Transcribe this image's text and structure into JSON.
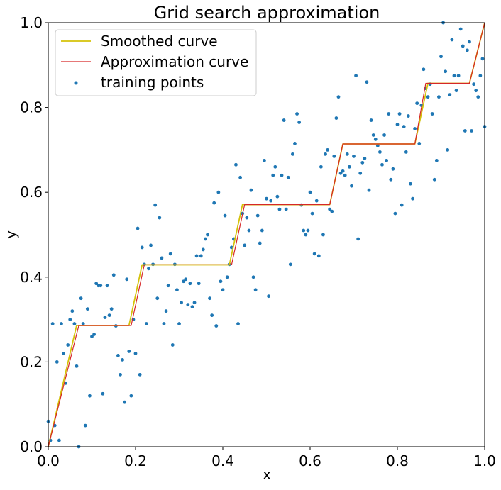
{
  "chart_data": {
    "type": "line",
    "title": "Grid search approximation",
    "xlabel": "x",
    "ylabel": "y",
    "xlim": [
      0.0,
      1.0
    ],
    "ylim": [
      0.0,
      1.0
    ],
    "xticks": [
      "0.0",
      "0.2",
      "0.4",
      "0.6",
      "0.8",
      "1.0"
    ],
    "yticks": [
      "0.0",
      "0.2",
      "0.4",
      "0.6",
      "0.8",
      "1.0"
    ],
    "grid": false,
    "legend_position": "top-left",
    "series": [
      {
        "name": "Smoothed curve",
        "kind": "line",
        "color": "#d4c20a",
        "x": [
          0.0,
          0.065,
          0.185,
          0.215,
          0.325,
          0.355,
          0.415,
          0.445,
          0.645,
          0.675,
          0.84,
          0.87,
          0.965,
          1.0
        ],
        "y": [
          0.0,
          0.286,
          0.286,
          0.429,
          0.429,
          0.429,
          0.429,
          0.571,
          0.571,
          0.714,
          0.714,
          0.857,
          0.857,
          1.0
        ]
      },
      {
        "name": "Approximation curve",
        "kind": "line",
        "color": "#d62728",
        "x": [
          0.0,
          0.07,
          0.19,
          0.22,
          0.42,
          0.45,
          0.645,
          0.675,
          0.84,
          0.865,
          0.965,
          1.0
        ],
        "y": [
          0.0,
          0.286,
          0.286,
          0.429,
          0.429,
          0.571,
          0.571,
          0.714,
          0.714,
          0.857,
          0.857,
          1.0
        ]
      },
      {
        "name": "training points",
        "kind": "scatter",
        "color": "#1f77b4",
        "points": [
          [
            0.0,
            0.06
          ],
          [
            0.005,
            0.015
          ],
          [
            0.01,
            0.29
          ],
          [
            0.015,
            0.05
          ],
          [
            0.02,
            0.2
          ],
          [
            0.025,
            0.015
          ],
          [
            0.03,
            0.29
          ],
          [
            0.035,
            0.22
          ],
          [
            0.04,
            0.15
          ],
          [
            0.045,
            0.24
          ],
          [
            0.05,
            0.3
          ],
          [
            0.055,
            0.32
          ],
          [
            0.06,
            0.29
          ],
          [
            0.065,
            0.19
          ],
          [
            0.07,
            0.0
          ],
          [
            0.075,
            0.35
          ],
          [
            0.08,
            0.29
          ],
          [
            0.085,
            0.05
          ],
          [
            0.09,
            0.325
          ],
          [
            0.095,
            0.12
          ],
          [
            0.1,
            0.26
          ],
          [
            0.105,
            0.265
          ],
          [
            0.11,
            0.385
          ],
          [
            0.115,
            0.38
          ],
          [
            0.12,
            0.38
          ],
          [
            0.125,
            0.125
          ],
          [
            0.13,
            0.305
          ],
          [
            0.135,
            0.38
          ],
          [
            0.14,
            0.31
          ],
          [
            0.145,
            0.325
          ],
          [
            0.15,
            0.405
          ],
          [
            0.155,
            0.285
          ],
          [
            0.16,
            0.215
          ],
          [
            0.165,
            0.17
          ],
          [
            0.17,
            0.205
          ],
          [
            0.175,
            0.105
          ],
          [
            0.18,
            0.395
          ],
          [
            0.185,
            0.225
          ],
          [
            0.19,
            0.12
          ],
          [
            0.195,
            0.3
          ],
          [
            0.2,
            0.22
          ],
          [
            0.205,
            0.515
          ],
          [
            0.21,
            0.17
          ],
          [
            0.215,
            0.47
          ],
          [
            0.22,
            0.43
          ],
          [
            0.225,
            0.29
          ],
          [
            0.23,
            0.42
          ],
          [
            0.235,
            0.475
          ],
          [
            0.24,
            0.43
          ],
          [
            0.245,
            0.57
          ],
          [
            0.25,
            0.35
          ],
          [
            0.255,
            0.54
          ],
          [
            0.26,
            0.445
          ],
          [
            0.265,
            0.29
          ],
          [
            0.27,
            0.32
          ],
          [
            0.275,
            0.38
          ],
          [
            0.28,
            0.455
          ],
          [
            0.285,
            0.24
          ],
          [
            0.29,
            0.43
          ],
          [
            0.295,
            0.37
          ],
          [
            0.3,
            0.29
          ],
          [
            0.305,
            0.34
          ],
          [
            0.31,
            0.39
          ],
          [
            0.315,
            0.395
          ],
          [
            0.32,
            0.335
          ],
          [
            0.325,
            0.385
          ],
          [
            0.33,
            0.33
          ],
          [
            0.335,
            0.34
          ],
          [
            0.34,
            0.45
          ],
          [
            0.345,
            0.385
          ],
          [
            0.35,
            0.45
          ],
          [
            0.355,
            0.465
          ],
          [
            0.36,
            0.49
          ],
          [
            0.365,
            0.5
          ],
          [
            0.37,
            0.35
          ],
          [
            0.375,
            0.31
          ],
          [
            0.38,
            0.575
          ],
          [
            0.385,
            0.285
          ],
          [
            0.39,
            0.6
          ],
          [
            0.395,
            0.39
          ],
          [
            0.4,
            0.37
          ],
          [
            0.405,
            0.545
          ],
          [
            0.41,
            0.4
          ],
          [
            0.415,
            0.43
          ],
          [
            0.42,
            0.47
          ],
          [
            0.425,
            0.49
          ],
          [
            0.43,
            0.665
          ],
          [
            0.435,
            0.29
          ],
          [
            0.44,
            0.635
          ],
          [
            0.445,
            0.55
          ],
          [
            0.45,
            0.475
          ],
          [
            0.455,
            0.54
          ],
          [
            0.46,
            0.51
          ],
          [
            0.465,
            0.605
          ],
          [
            0.47,
            0.4
          ],
          [
            0.475,
            0.37
          ],
          [
            0.48,
            0.545
          ],
          [
            0.485,
            0.48
          ],
          [
            0.49,
            0.51
          ],
          [
            0.495,
            0.675
          ],
          [
            0.5,
            0.585
          ],
          [
            0.505,
            0.355
          ],
          [
            0.51,
            0.58
          ],
          [
            0.515,
            0.64
          ],
          [
            0.52,
            0.66
          ],
          [
            0.525,
            0.59
          ],
          [
            0.53,
            0.56
          ],
          [
            0.535,
            0.64
          ],
          [
            0.54,
            0.77
          ],
          [
            0.545,
            0.56
          ],
          [
            0.55,
            0.635
          ],
          [
            0.555,
            0.43
          ],
          [
            0.56,
            0.69
          ],
          [
            0.565,
            0.715
          ],
          [
            0.57,
            0.785
          ],
          [
            0.575,
            0.765
          ],
          [
            0.58,
            0.57
          ],
          [
            0.585,
            0.51
          ],
          [
            0.59,
            0.5
          ],
          [
            0.595,
            0.51
          ],
          [
            0.6,
            0.6
          ],
          [
            0.605,
            0.55
          ],
          [
            0.61,
            0.455
          ],
          [
            0.615,
            0.58
          ],
          [
            0.62,
            0.45
          ],
          [
            0.625,
            0.66
          ],
          [
            0.63,
            0.5
          ],
          [
            0.635,
            0.69
          ],
          [
            0.64,
            0.7
          ],
          [
            0.645,
            0.56
          ],
          [
            0.65,
            0.555
          ],
          [
            0.655,
            0.685
          ],
          [
            0.66,
            0.775
          ],
          [
            0.665,
            0.825
          ],
          [
            0.67,
            0.645
          ],
          [
            0.675,
            0.65
          ],
          [
            0.68,
            0.64
          ],
          [
            0.685,
            0.69
          ],
          [
            0.69,
            0.66
          ],
          [
            0.695,
            0.615
          ],
          [
            0.7,
            0.685
          ],
          [
            0.705,
            0.875
          ],
          [
            0.71,
            0.49
          ],
          [
            0.715,
            0.645
          ],
          [
            0.72,
            0.67
          ],
          [
            0.725,
            0.68
          ],
          [
            0.73,
            0.86
          ],
          [
            0.735,
            0.605
          ],
          [
            0.74,
            0.77
          ],
          [
            0.745,
            0.735
          ],
          [
            0.75,
            0.725
          ],
          [
            0.755,
            0.71
          ],
          [
            0.76,
            0.695
          ],
          [
            0.765,
            0.665
          ],
          [
            0.77,
            0.735
          ],
          [
            0.775,
            0.675
          ],
          [
            0.78,
            0.785
          ],
          [
            0.785,
            0.63
          ],
          [
            0.79,
            0.655
          ],
          [
            0.795,
            0.55
          ],
          [
            0.8,
            0.76
          ],
          [
            0.805,
            0.785
          ],
          [
            0.81,
            0.57
          ],
          [
            0.815,
            0.755
          ],
          [
            0.82,
            0.695
          ],
          [
            0.825,
            0.78
          ],
          [
            0.83,
            0.62
          ],
          [
            0.835,
            0.585
          ],
          [
            0.84,
            0.75
          ],
          [
            0.845,
            0.81
          ],
          [
            0.85,
            0.715
          ],
          [
            0.855,
            0.805
          ],
          [
            0.86,
            0.89
          ],
          [
            0.865,
            0.845
          ],
          [
            0.87,
            0.825
          ],
          [
            0.875,
            0.855
          ],
          [
            0.88,
            0.785
          ],
          [
            0.885,
            0.63
          ],
          [
            0.89,
            0.675
          ],
          [
            0.895,
            0.825
          ],
          [
            0.9,
            0.92
          ],
          [
            0.905,
            1.0
          ],
          [
            0.91,
            0.885
          ],
          [
            0.915,
            0.7
          ],
          [
            0.92,
            0.83
          ],
          [
            0.925,
            0.96
          ],
          [
            0.93,
            0.875
          ],
          [
            0.935,
            0.84
          ],
          [
            0.94,
            0.875
          ],
          [
            0.945,
            0.985
          ],
          [
            0.95,
            0.945
          ],
          [
            0.955,
            0.745
          ],
          [
            0.96,
            0.935
          ],
          [
            0.965,
            0.955
          ],
          [
            0.97,
            0.745
          ],
          [
            0.975,
            0.855
          ],
          [
            0.98,
            0.84
          ],
          [
            0.985,
            0.825
          ],
          [
            0.99,
            0.875
          ],
          [
            0.995,
            0.915
          ],
          [
            1.0,
            0.755
          ]
        ]
      }
    ]
  }
}
